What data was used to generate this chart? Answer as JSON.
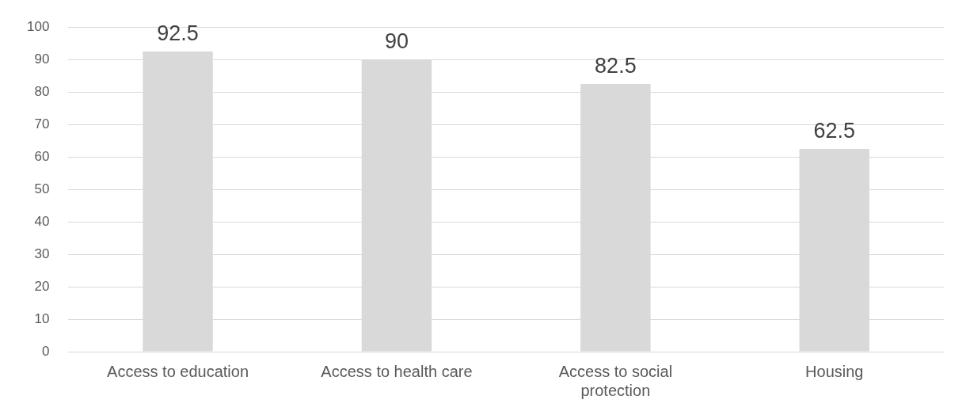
{
  "chart_data": {
    "type": "bar",
    "categories": [
      "Access to education",
      "Access to health care",
      "Access to social protection",
      "Housing"
    ],
    "values": [
      92.5,
      90,
      82.5,
      62.5
    ],
    "color": "#d9d9d9",
    "ylim": [
      0,
      100
    ],
    "yticks": [
      0,
      10,
      20,
      30,
      40,
      50,
      60,
      70,
      80,
      90,
      100
    ],
    "grid": "y",
    "legend": false,
    "data_labels": true
  }
}
